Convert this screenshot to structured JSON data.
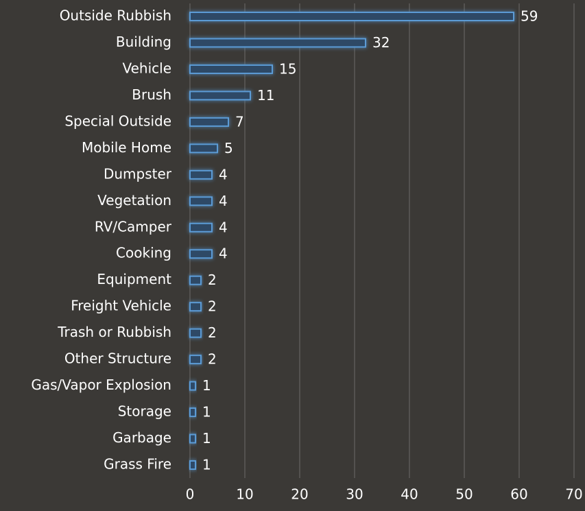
{
  "chart_data": {
    "type": "bar",
    "orientation": "horizontal",
    "categories": [
      "Outside Rubbish",
      "Building",
      "Vehicle",
      "Brush",
      "Special Outside",
      "Mobile Home",
      "Dumpster",
      "Vegetation",
      "RV/Camper",
      "Cooking",
      "Equipment",
      "Freight Vehicle",
      "Trash or Rubbish",
      "Other Structure",
      "Gas/Vapor Explosion",
      "Storage",
      "Garbage",
      "Grass Fire"
    ],
    "values": [
      59,
      32,
      15,
      11,
      7,
      5,
      4,
      4,
      4,
      4,
      2,
      2,
      2,
      2,
      1,
      1,
      1,
      1
    ],
    "color": "#5b9bd5",
    "xlim": [
      0,
      70
    ],
    "xticks": [
      0,
      10,
      20,
      30,
      40,
      50,
      60,
      70
    ],
    "grid": true
  }
}
